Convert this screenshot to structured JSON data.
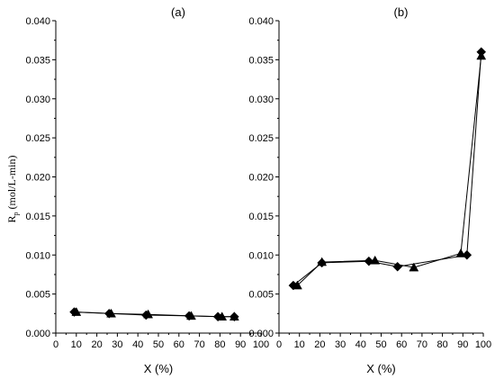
{
  "chart_data": [
    {
      "type": "line",
      "panel_label": "(a)",
      "xlabel": "X (%)",
      "ylabel_main": "R",
      "ylabel_sub": "p",
      "ylabel_rest": "(mol/L-min)",
      "xlim": [
        0,
        100
      ],
      "ylim": [
        0,
        0.04
      ],
      "x_ticks": [
        "0",
        "10",
        "20",
        "30",
        "40",
        "50",
        "60",
        "70",
        "80",
        "90",
        "100"
      ],
      "y_ticks": [
        "0.000",
        "0.005",
        "0.010",
        "0.015",
        "0.020",
        "0.025",
        "0.030",
        "0.035",
        "0.040"
      ],
      "series": [
        {
          "marker": "diamond",
          "x": [
            9,
            26,
            44,
            65,
            79,
            87
          ],
          "y": [
            0.0027,
            0.0025,
            0.0023,
            0.0022,
            0.0021,
            0.0021
          ]
        },
        {
          "marker": "triangle",
          "x": [
            10,
            27,
            45,
            66,
            81,
            87
          ],
          "y": [
            0.0027,
            0.0025,
            0.0024,
            0.0022,
            0.0021,
            0.0021
          ]
        }
      ]
    },
    {
      "type": "line",
      "panel_label": "(b)",
      "xlabel": "X (%)",
      "xlim": [
        0,
        100
      ],
      "ylim": [
        0,
        0.04
      ],
      "x_ticks": [
        "0",
        "10",
        "20",
        "30",
        "40",
        "50",
        "60",
        "70",
        "80",
        "90",
        "100"
      ],
      "y_ticks": [
        "0.000",
        "0.005",
        "0.010",
        "0.015",
        "0.020",
        "0.025",
        "0.030",
        "0.035",
        "0.040"
      ],
      "series": [
        {
          "marker": "diamond",
          "x": [
            7,
            21,
            44,
            58,
            92,
            99
          ],
          "y": [
            0.0061,
            0.009,
            0.0092,
            0.0085,
            0.01,
            0.036
          ]
        },
        {
          "marker": "triangle",
          "x": [
            9,
            21,
            47,
            66,
            89,
            99
          ],
          "y": [
            0.0061,
            0.0091,
            0.0093,
            0.0084,
            0.0102,
            0.0355
          ]
        }
      ]
    }
  ]
}
